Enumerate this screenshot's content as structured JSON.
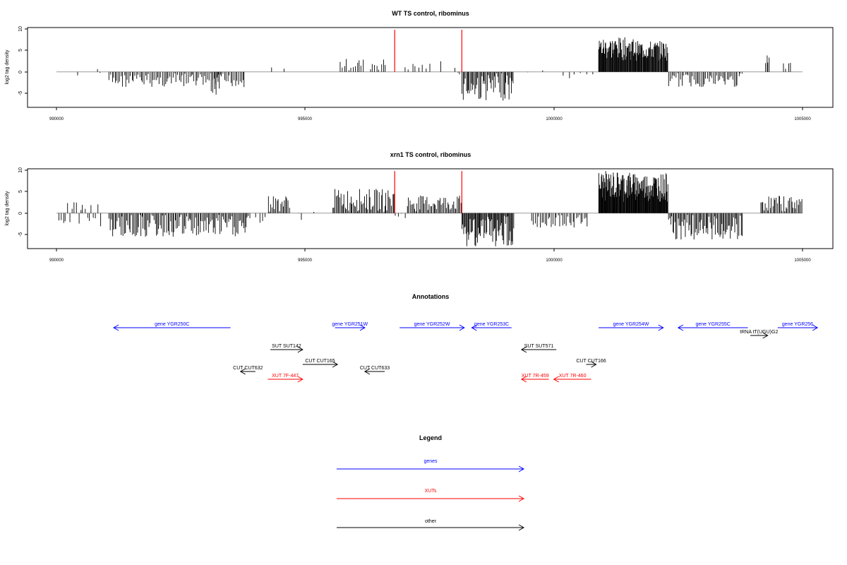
{
  "panels": [
    {
      "title": "WT TS control, ribominus",
      "ylabel": "log2 tag density",
      "xlim": [
        990000,
        1005000
      ],
      "ylim": [
        -8,
        10
      ],
      "xticks": [
        "990000",
        "995000",
        "1000000",
        "1005000"
      ],
      "yticks": [
        "-5",
        "0",
        "5",
        "10"
      ],
      "markers_x": [
        996800,
        998150
      ],
      "marker_color": "#ff0000"
    },
    {
      "title": "xrn1 TS control, ribominus",
      "ylabel": "log2 tag density",
      "xlim": [
        990000,
        1005000
      ],
      "ylim": [
        -8,
        10
      ],
      "xticks": [
        "990000",
        "995000",
        "1000000",
        "1005000"
      ],
      "yticks": [
        "-5",
        "0",
        "5",
        "10"
      ],
      "markers_x": [
        996800,
        998150
      ],
      "marker_color": "#ff0000"
    }
  ],
  "chart_data": [
    {
      "type": "bar",
      "title": "WT TS control, ribominus",
      "ylabel": "log2 tag density",
      "xlim": [
        990000,
        1005000
      ],
      "ylim": [
        -8,
        10
      ],
      "grid": false,
      "baseline_range": [
        990000,
        1005000
      ],
      "segments": [
        {
          "start": 990400,
          "end": 990450,
          "min": -1.5,
          "max": 0,
          "count": 1
        },
        {
          "start": 990800,
          "end": 990850,
          "min": 0,
          "max": 1,
          "count": 1
        },
        {
          "start": 990850,
          "end": 990900,
          "min": -1.5,
          "max": 0,
          "count": 1
        },
        {
          "start": 991050,
          "end": 993800,
          "min": -3.5,
          "max": -0.3,
          "count": 90
        },
        {
          "start": 993100,
          "end": 993300,
          "min": -5.5,
          "max": -2,
          "count": 6
        },
        {
          "start": 994300,
          "end": 994350,
          "min": 0,
          "max": 1,
          "count": 1
        },
        {
          "start": 994550,
          "end": 994600,
          "min": 0,
          "max": 1,
          "count": 1
        },
        {
          "start": 995700,
          "end": 996200,
          "min": 0.2,
          "max": 3,
          "count": 12
        },
        {
          "start": 996300,
          "end": 996650,
          "min": 0.2,
          "max": 3,
          "count": 8
        },
        {
          "start": 997000,
          "end": 997550,
          "min": 0.2,
          "max": 2,
          "count": 8
        },
        {
          "start": 997700,
          "end": 997750,
          "min": 0,
          "max": 2.5,
          "count": 1
        },
        {
          "start": 998000,
          "end": 998150,
          "min": -1,
          "max": 1,
          "count": 3
        },
        {
          "start": 998150,
          "end": 999200,
          "min": -6.5,
          "max": -0.3,
          "count": 50
        },
        {
          "start": 999450,
          "end": 999500,
          "min": -1,
          "max": 0,
          "count": 1
        },
        {
          "start": 999750,
          "end": 999800,
          "min": 0,
          "max": 1,
          "count": 1
        },
        {
          "start": 1000150,
          "end": 1000900,
          "min": -1.5,
          "max": 0,
          "count": 6
        },
        {
          "start": 1000900,
          "end": 1001600,
          "min": 2.5,
          "max": 7.8,
          "count": 60
        },
        {
          "start": 1001600,
          "end": 1002300,
          "min": 2.5,
          "max": 7,
          "count": 60
        },
        {
          "start": 1002300,
          "end": 1003800,
          "min": -3.5,
          "max": -0.3,
          "count": 50
        },
        {
          "start": 1004250,
          "end": 1004350,
          "min": 0.5,
          "max": 4.5,
          "count": 4
        },
        {
          "start": 1004600,
          "end": 1004800,
          "min": 0.5,
          "max": 3,
          "count": 4
        }
      ]
    },
    {
      "type": "bar",
      "title": "xrn1 TS control, ribominus",
      "ylabel": "log2 tag density",
      "xlim": [
        990000,
        1005000
      ],
      "ylim": [
        -8,
        10
      ],
      "grid": false,
      "baseline_range": [
        990000,
        1005000
      ],
      "segments": [
        {
          "start": 990000,
          "end": 990950,
          "min": -3,
          "max": 2.5,
          "count": 22
        },
        {
          "start": 991050,
          "end": 993900,
          "min": -5.5,
          "max": -0.3,
          "count": 120
        },
        {
          "start": 994000,
          "end": 994250,
          "min": -3,
          "max": -0.3,
          "count": 4
        },
        {
          "start": 994250,
          "end": 994700,
          "min": 0.3,
          "max": 4,
          "count": 18
        },
        {
          "start": 994850,
          "end": 994950,
          "min": -2,
          "max": 0,
          "count": 2
        },
        {
          "start": 995150,
          "end": 995200,
          "min": 0,
          "max": 4,
          "count": 1
        },
        {
          "start": 995550,
          "end": 996800,
          "min": 0.3,
          "max": 5.5,
          "count": 55
        },
        {
          "start": 996800,
          "end": 997050,
          "min": -1.5,
          "max": 0,
          "count": 4
        },
        {
          "start": 997050,
          "end": 998150,
          "min": 0.3,
          "max": 4,
          "count": 45
        },
        {
          "start": 998150,
          "end": 999200,
          "min": -7.5,
          "max": -0.3,
          "count": 65
        },
        {
          "start": 999550,
          "end": 1000700,
          "min": -3.5,
          "max": -0.3,
          "count": 35
        },
        {
          "start": 1000900,
          "end": 1001600,
          "min": 2.5,
          "max": 9.5,
          "count": 70
        },
        {
          "start": 1001600,
          "end": 1002300,
          "min": 2.5,
          "max": 9,
          "count": 70
        },
        {
          "start": 1002300,
          "end": 1003800,
          "min": -6,
          "max": -0.3,
          "count": 70
        },
        {
          "start": 1004150,
          "end": 1005000,
          "min": 0.3,
          "max": 4,
          "count": 35
        }
      ]
    },
    {
      "type": "table",
      "title": "Annotations",
      "features": [
        {
          "label": "gene YGR250C",
          "category": "genes",
          "start": 991150,
          "end": 993500,
          "strand": "-",
          "track": 0
        },
        {
          "label": "gene YGR251W",
          "category": "genes",
          "start": 995600,
          "end": 996200,
          "strand": "+",
          "track": 0
        },
        {
          "label": "gene YGR252W",
          "category": "genes",
          "start": 996900,
          "end": 998200,
          "strand": "+",
          "track": 0
        },
        {
          "label": "gene YGR253C",
          "category": "genes",
          "start": 998350,
          "end": 999150,
          "strand": "-",
          "track": 0
        },
        {
          "label": "gene YGR254W",
          "category": "genes",
          "start": 1000900,
          "end": 1002200,
          "strand": "+",
          "track": 0
        },
        {
          "label": "gene YGR255C",
          "category": "genes",
          "start": 1002500,
          "end": 1003900,
          "strand": "-",
          "track": 0
        },
        {
          "label": "gene YGR256",
          "category": "genes",
          "start": 1004500,
          "end": 1005300,
          "strand": "+",
          "track": 0
        },
        {
          "label": "tRNA tT(UGU)G2",
          "category": "other",
          "start": 1003950,
          "end": 1004300,
          "strand": "+",
          "track": 1
        },
        {
          "label": "SUT SUT142",
          "category": "other",
          "start": 994300,
          "end": 994950,
          "strand": "+",
          "track": 2
        },
        {
          "label": "SUT SUT571",
          "category": "other",
          "start": 999350,
          "end": 1000050,
          "strand": "-",
          "track": 2
        },
        {
          "label": "CUT CUT165",
          "category": "other",
          "start": 994950,
          "end": 995650,
          "strand": "+",
          "track": 3
        },
        {
          "label": "CUT CUT166",
          "category": "other",
          "start": 1000650,
          "end": 1000850,
          "strand": "+",
          "track": 3
        },
        {
          "label": "CUT CUT632",
          "category": "other",
          "start": 993700,
          "end": 994000,
          "strand": "-",
          "track": 4
        },
        {
          "label": "CUT CUT633",
          "category": "other",
          "start": 996200,
          "end": 996600,
          "strand": "-",
          "track": 4
        },
        {
          "label": "XUT 7F-447",
          "category": "XUTs",
          "start": 994250,
          "end": 994950,
          "strand": "+",
          "track": 5
        },
        {
          "label": "XUT 7R-459",
          "category": "XUTs",
          "start": 999350,
          "end": 999900,
          "strand": "-",
          "track": 5
        },
        {
          "label": "XUT 7R-460",
          "category": "XUTs",
          "start": 1000000,
          "end": 1000750,
          "strand": "-",
          "track": 5
        }
      ]
    }
  ],
  "annotations": {
    "title": "Annotations"
  },
  "legend": {
    "title": "Legend",
    "items": [
      {
        "label": "genes",
        "color": "#0000ff"
      },
      {
        "label": "XUTs",
        "color": "#ff0000"
      },
      {
        "label": "other",
        "color": "#000000"
      }
    ]
  },
  "colors": {
    "genes": "#0000ff",
    "XUTs": "#ff0000",
    "other": "#000000",
    "baseline": "#9a9a9a",
    "bars": "#000000"
  }
}
